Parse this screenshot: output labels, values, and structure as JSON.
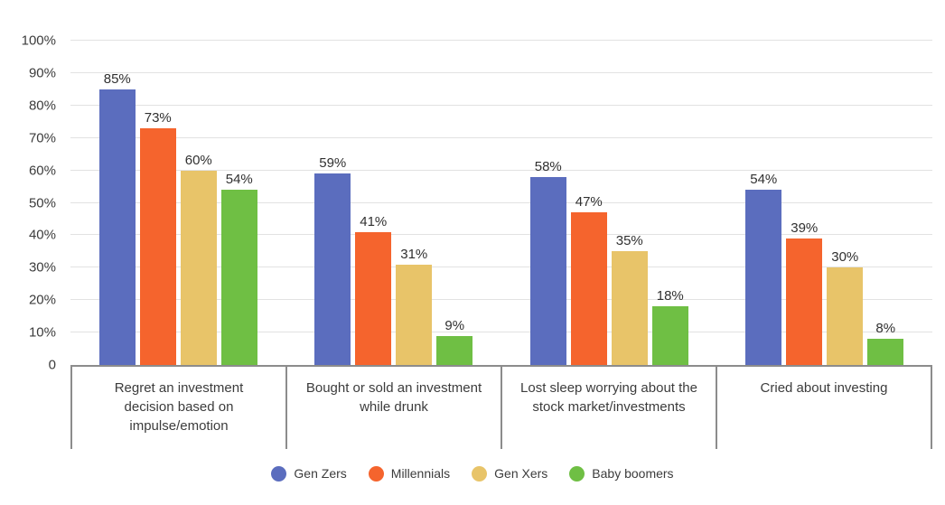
{
  "chart_data": {
    "type": "bar",
    "title": "",
    "categories": [
      "Regret an investment decision based on impulse/emotion",
      "Bought or sold an investment while drunk",
      "Lost sleep worrying about the stock market/investments",
      "Cried about investing"
    ],
    "series": [
      {
        "name": "Gen Zers",
        "color": "#5b6dbe",
        "values": [
          85,
          59,
          58,
          54
        ],
        "labels": [
          "85%",
          "59%",
          "58%",
          "54%"
        ]
      },
      {
        "name": "Millennials",
        "color": "#f5642d",
        "values": [
          73,
          41,
          47,
          39
        ],
        "labels": [
          "73%",
          "41%",
          "47%",
          "39%"
        ]
      },
      {
        "name": "Gen Xers",
        "color": "#e8c469",
        "values": [
          60,
          31,
          35,
          30
        ],
        "labels": [
          "60%",
          "31%",
          "35%",
          "30%"
        ]
      },
      {
        "name": "Baby boomers",
        "color": "#6fbf44",
        "values": [
          54,
          9,
          18,
          8
        ],
        "labels": [
          "54%",
          "9%",
          "18%",
          "8%"
        ]
      }
    ],
    "y_axis": {
      "min": 0,
      "max": 100,
      "tick_values": [
        100,
        90,
        80,
        70,
        60,
        50,
        40,
        30,
        20,
        10,
        0
      ],
      "tick_labels": [
        "100%",
        "90%",
        "80%",
        "70%",
        "60%",
        "50%",
        "40%",
        "30%",
        "20%",
        "10%",
        "0"
      ]
    },
    "value_suffix": "%",
    "grid": true,
    "legend_position": "bottom"
  }
}
